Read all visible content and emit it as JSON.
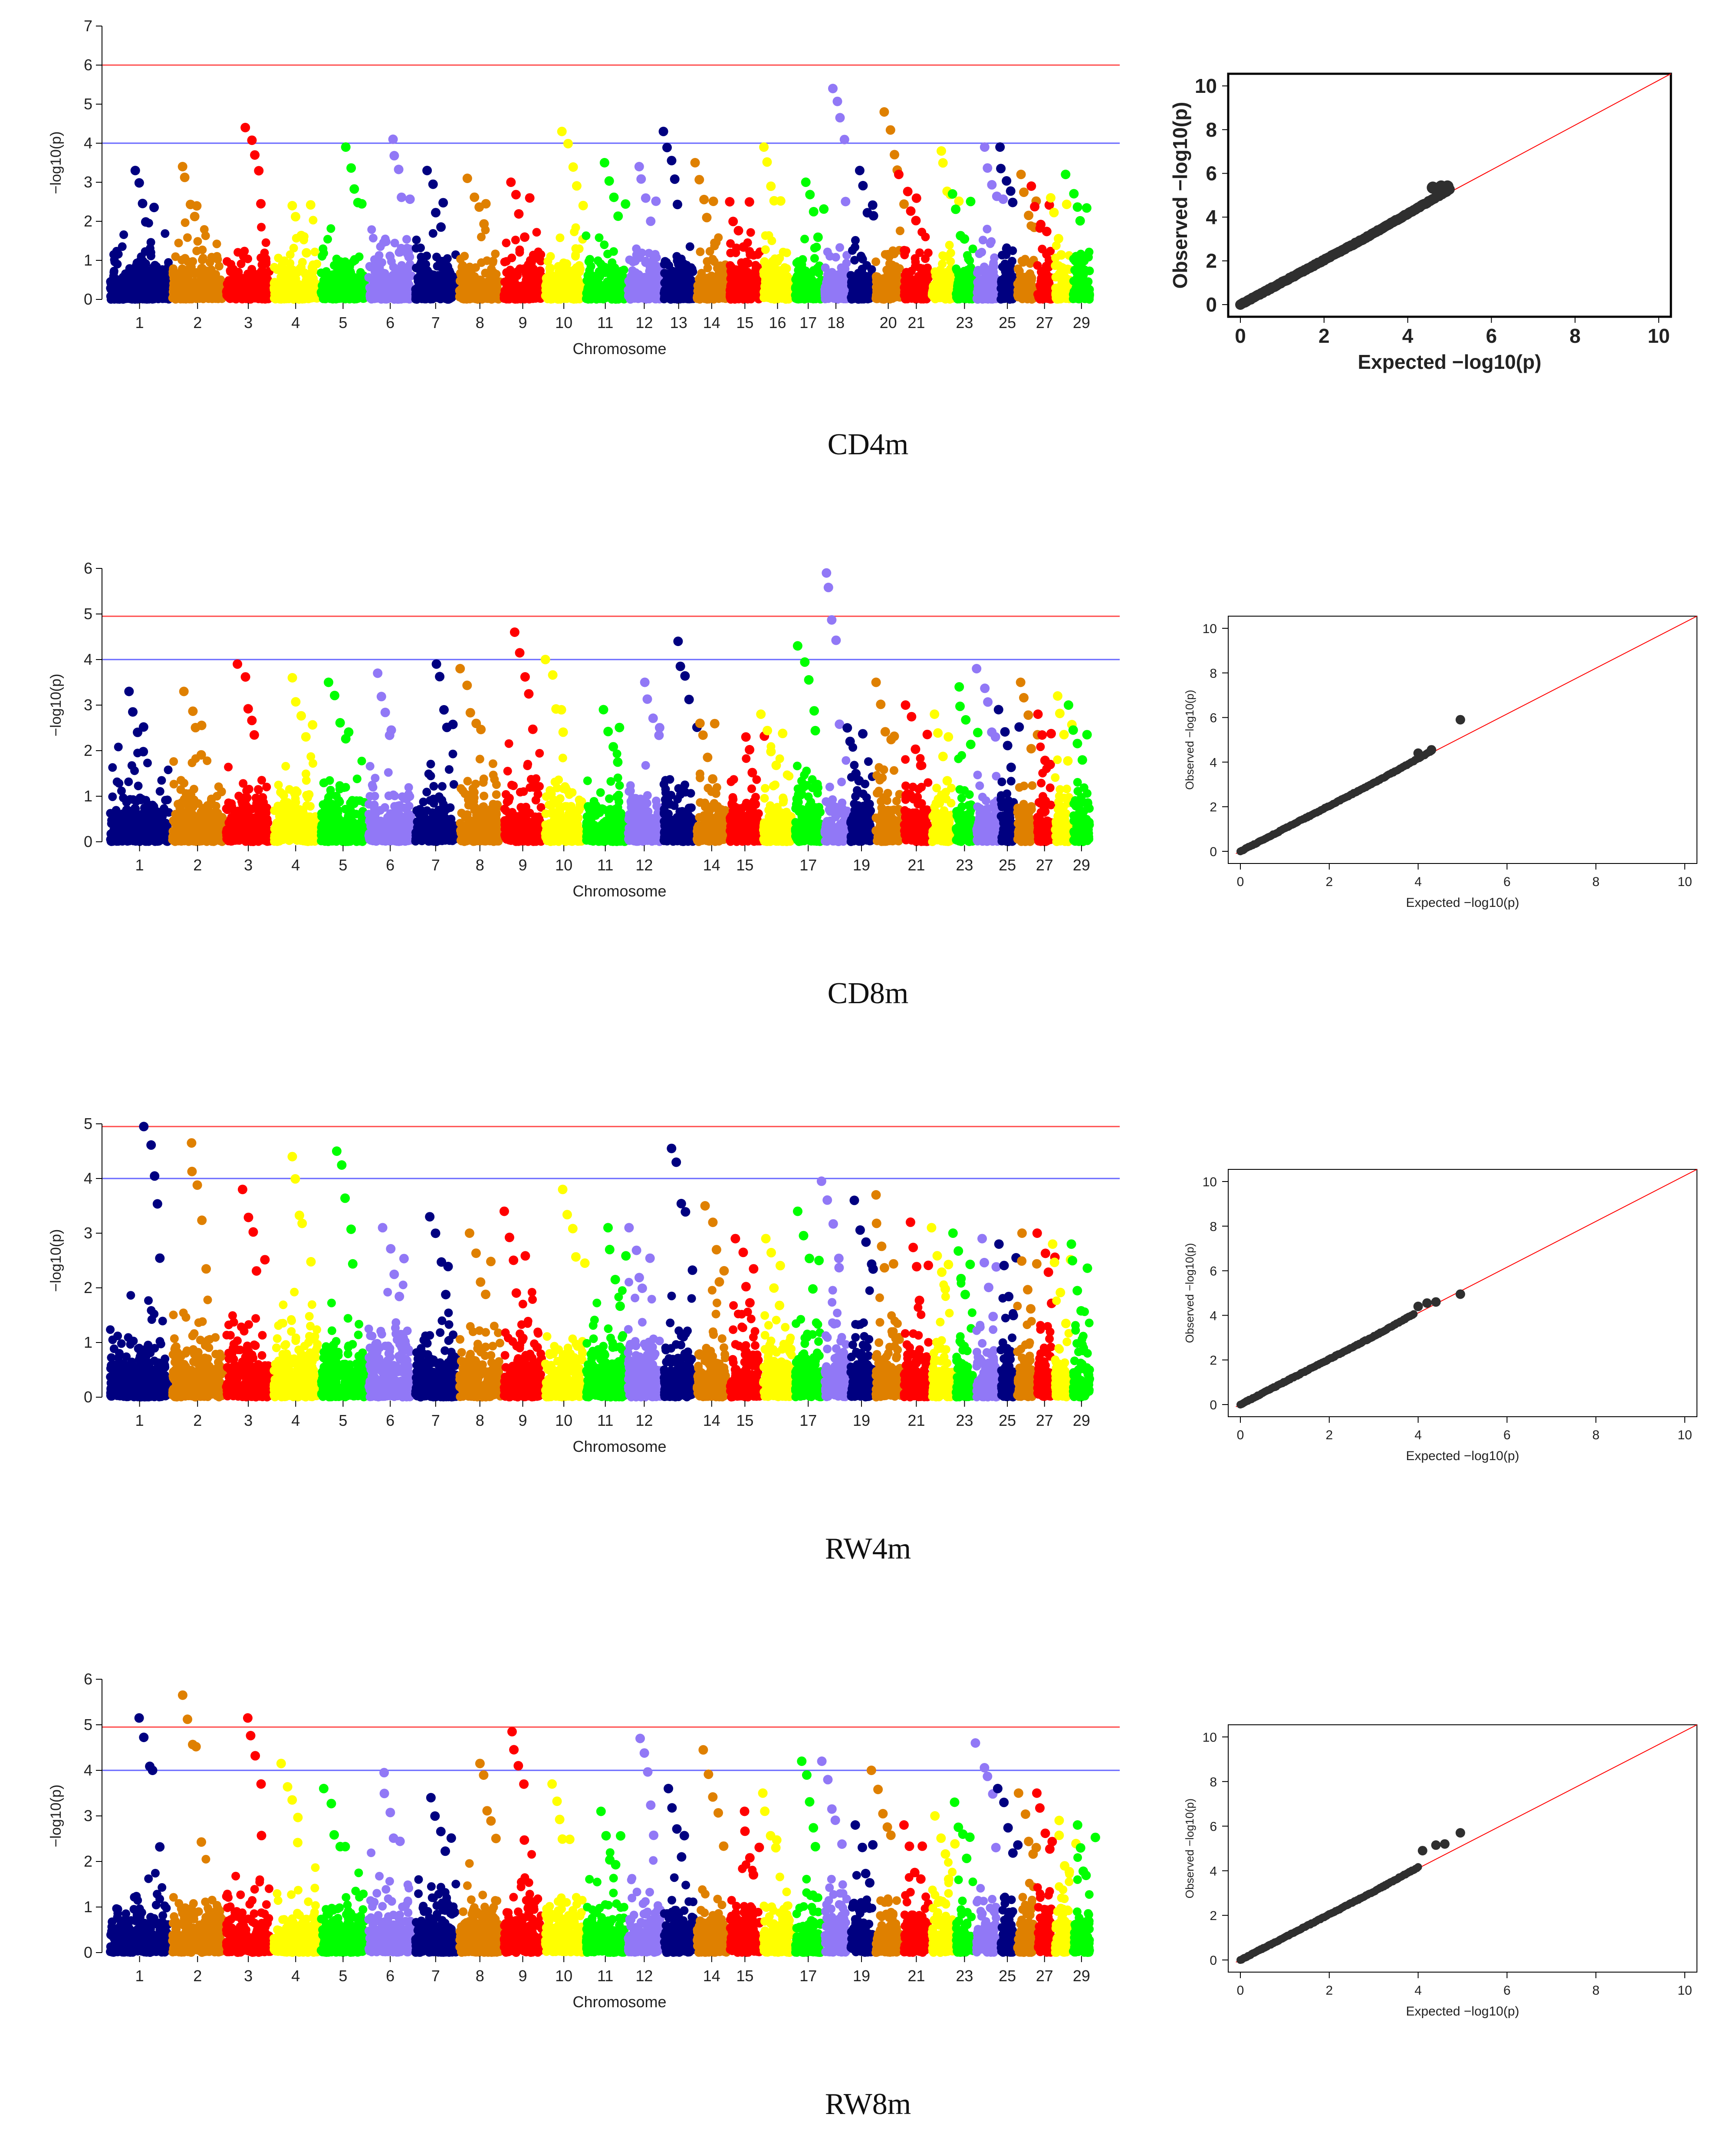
{
  "figure": {
    "panels": [
      {
        "id": "CD4m",
        "caption": "CD4m",
        "qq_style": "bold"
      },
      {
        "id": "CD8m",
        "caption": "CD8m",
        "qq_style": "thin"
      },
      {
        "id": "RW4m",
        "caption": "RW4m",
        "qq_style": "thin"
      },
      {
        "id": "RW8m",
        "caption": "RW8m",
        "qq_style": "thin"
      }
    ]
  },
  "colors": {
    "chromosome_cycle": [
      "#000080",
      "#DF8000",
      "#FF0000",
      "#FFFF00",
      "#00FF00",
      "#9178F6",
      "#000080",
      "#DF8000",
      "#FF0000",
      "#FFFF00",
      "#00FF00",
      "#9178F6",
      "#000080",
      "#DF8000",
      "#FF0000",
      "#FFFF00",
      "#00FF00",
      "#9178F6",
      "#000080",
      "#DF8000",
      "#FF0000",
      "#FFFF00",
      "#00FF00",
      "#9178F6",
      "#000080",
      "#DF8000",
      "#FF0000",
      "#FFFF00",
      "#00FF00"
    ],
    "genome_wide_line": "#FF4D4D",
    "suggestive_line": "#6666FF",
    "qq_point": "#2F2F2F",
    "qq_line": "#FF0000"
  },
  "chart_data": [
    {
      "type": "scatter",
      "subtype": "manhattan",
      "panel": "CD4m",
      "xlabel": "Chromosome",
      "ylabel": "−log10(p)",
      "ylim": [
        0,
        7
      ],
      "yticks": [
        "0",
        "1",
        "2",
        "3",
        "4",
        "5",
        "6",
        "7"
      ],
      "thresholds": {
        "genome_wide": 6.0,
        "suggestive": 4.0
      },
      "chromosome_labels": [
        "1",
        "2",
        "3",
        "4",
        "5",
        "6",
        "7",
        "8",
        "9",
        "10",
        "11",
        "12",
        "13",
        "14",
        "15",
        "16",
        "17",
        "18",
        "20",
        "21",
        "23",
        "25",
        "27",
        "29"
      ],
      "label_chromosomes": [
        1,
        2,
        3,
        4,
        5,
        6,
        7,
        8,
        9,
        10,
        11,
        12,
        13,
        14,
        15,
        16,
        17,
        18,
        20,
        21,
        23,
        25,
        27,
        29
      ],
      "chromosome_max": [
        3.3,
        3.4,
        4.4,
        2.4,
        3.9,
        4.1,
        3.3,
        3.1,
        3.0,
        4.3,
        3.5,
        3.4,
        4.3,
        3.5,
        2.5,
        3.9,
        3.0,
        5.4,
        3.3,
        4.8,
        3.2,
        3.8,
        2.7,
        3.9,
        3.9,
        3.2,
        2.9,
        2.6,
        3.2
      ]
    },
    {
      "type": "scatter",
      "subtype": "manhattan",
      "panel": "CD8m",
      "xlabel": "Chromosome",
      "ylabel": "−log10(p)",
      "ylim": [
        0,
        6
      ],
      "yticks": [
        "0",
        "1",
        "2",
        "3",
        "4",
        "5",
        "6"
      ],
      "thresholds": {
        "genome_wide": 4.95,
        "suggestive": 4.0
      },
      "chromosome_labels": [
        "1",
        "2",
        "3",
        "4",
        "5",
        "6",
        "7",
        "8",
        "9",
        "10",
        "11",
        "12",
        "14",
        "15",
        "17",
        "19",
        "21",
        "23",
        "25",
        "27",
        "29"
      ],
      "label_chromosomes": [
        1,
        2,
        3,
        4,
        5,
        6,
        7,
        8,
        9,
        10,
        11,
        12,
        14,
        15,
        17,
        19,
        21,
        23,
        25,
        27,
        29
      ],
      "chromosome_max": [
        3.3,
        3.3,
        3.9,
        3.6,
        3.5,
        3.7,
        3.9,
        3.8,
        4.6,
        4.0,
        2.9,
        3.5,
        4.4,
        2.6,
        2.3,
        2.8,
        4.3,
        5.9,
        2.5,
        3.5,
        3.0,
        2.8,
        3.4,
        3.8,
        2.9,
        3.5,
        2.8,
        3.2,
        3.0
      ]
    },
    {
      "type": "scatter",
      "subtype": "manhattan",
      "panel": "RW4m",
      "xlabel": "Chromosome",
      "ylabel": "−log10(p)",
      "ylim": [
        0,
        5
      ],
      "yticks": [
        "0",
        "1",
        "2",
        "3",
        "4",
        "5"
      ],
      "thresholds": {
        "genome_wide": 4.95,
        "suggestive": 4.0
      },
      "chromosome_labels": [
        "1",
        "2",
        "3",
        "4",
        "5",
        "6",
        "7",
        "8",
        "9",
        "10",
        "11",
        "12",
        "14",
        "15",
        "17",
        "19",
        "21",
        "23",
        "25",
        "27",
        "29"
      ],
      "label_chromosomes": [
        1,
        2,
        3,
        4,
        5,
        6,
        7,
        8,
        9,
        10,
        11,
        12,
        14,
        15,
        17,
        19,
        21,
        23,
        25,
        27,
        29
      ],
      "chromosome_max": [
        4.95,
        4.65,
        3.8,
        4.4,
        4.5,
        3.1,
        3.3,
        3.0,
        3.4,
        3.8,
        3.1,
        3.1,
        4.55,
        3.5,
        2.9,
        2.9,
        3.4,
        3.95,
        3.6,
        3.7,
        3.2,
        3.1,
        3.0,
        2.9,
        2.8,
        3.0,
        3.0,
        2.8,
        2.8
      ]
    },
    {
      "type": "scatter",
      "subtype": "manhattan",
      "panel": "RW8m",
      "xlabel": "Chromosome",
      "ylabel": "−log10(p)",
      "ylim": [
        0,
        6
      ],
      "yticks": [
        "0",
        "1",
        "2",
        "3",
        "4",
        "5",
        "6"
      ],
      "thresholds": {
        "genome_wide": 4.95,
        "suggestive": 4.0
      },
      "chromosome_labels": [
        "1",
        "2",
        "3",
        "4",
        "5",
        "6",
        "7",
        "8",
        "9",
        "10",
        "11",
        "12",
        "14",
        "15",
        "17",
        "19",
        "21",
        "23",
        "25",
        "27",
        "29"
      ],
      "label_chromosomes": [
        1,
        2,
        3,
        4,
        5,
        6,
        7,
        8,
        9,
        10,
        11,
        12,
        14,
        15,
        17,
        19,
        21,
        23,
        25,
        27,
        29
      ],
      "chromosome_max": [
        5.15,
        5.65,
        5.15,
        4.15,
        3.6,
        3.95,
        3.4,
        4.15,
        4.85,
        3.7,
        3.1,
        4.7,
        3.6,
        4.45,
        3.1,
        3.5,
        4.2,
        4.2,
        2.8,
        4.0,
        2.8,
        3.0,
        3.3,
        4.6,
        3.6,
        3.5,
        3.5,
        2.9,
        2.8
      ]
    },
    {
      "type": "scatter",
      "subtype": "qq",
      "panel": "CD4m",
      "xlabel": "Expected −log10(p)",
      "ylabel": "Observed −log10(p)",
      "xlim": [
        0,
        10
      ],
      "ylim": [
        0,
        10
      ],
      "ticks": [
        "0",
        "2",
        "4",
        "6",
        "8",
        "10"
      ],
      "max_expected": 5.0,
      "tail_points": [
        [
          4.6,
          5.35
        ],
        [
          4.8,
          5.4
        ],
        [
          4.95,
          5.4
        ]
      ]
    },
    {
      "type": "scatter",
      "subtype": "qq",
      "panel": "CD8m",
      "xlabel": "Expected −log10(p)",
      "ylabel": "Observed −log10(p)",
      "xlim": [
        0,
        10
      ],
      "ylim": [
        0,
        10
      ],
      "ticks": [
        "0",
        "2",
        "4",
        "6",
        "8",
        "10"
      ],
      "max_expected": 4.3,
      "tail_points": [
        [
          4.0,
          4.4
        ],
        [
          4.3,
          4.55
        ],
        [
          4.95,
          5.9
        ]
      ]
    },
    {
      "type": "scatter",
      "subtype": "qq",
      "panel": "RW4m",
      "xlabel": "Expected −log10(p)",
      "ylabel": "Observed −log10(p)",
      "xlim": [
        0,
        10
      ],
      "ylim": [
        0,
        10
      ],
      "ticks": [
        "0",
        "2",
        "4",
        "6",
        "8",
        "10"
      ],
      "max_expected": 3.9,
      "tail_points": [
        [
          4.0,
          4.4
        ],
        [
          4.2,
          4.55
        ],
        [
          4.4,
          4.6
        ],
        [
          4.95,
          4.95
        ]
      ]
    },
    {
      "type": "scatter",
      "subtype": "qq",
      "panel": "RW8m",
      "xlabel": "Expected −log10(p)",
      "ylabel": "Observed −log10(p)",
      "xlim": [
        0,
        10
      ],
      "ylim": [
        0,
        10
      ],
      "ticks": [
        "0",
        "2",
        "4",
        "6",
        "8",
        "10"
      ],
      "max_expected": 4.0,
      "tail_points": [
        [
          4.1,
          4.9
        ],
        [
          4.4,
          5.15
        ],
        [
          4.6,
          5.2
        ],
        [
          4.95,
          5.7
        ]
      ]
    }
  ]
}
